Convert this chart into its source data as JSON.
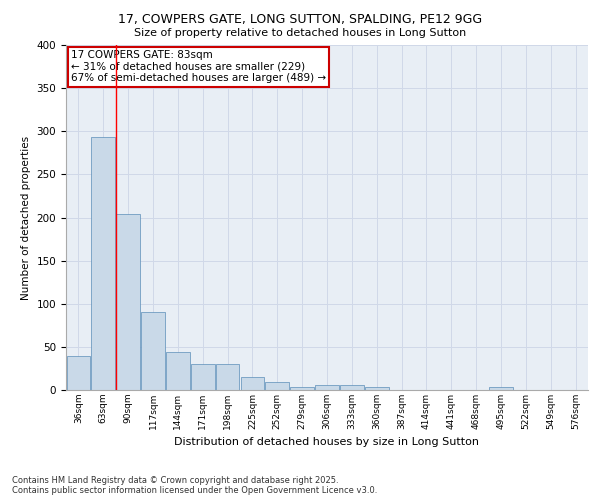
{
  "title1": "17, COWPERS GATE, LONG SUTTON, SPALDING, PE12 9GG",
  "title2": "Size of property relative to detached houses in Long Sutton",
  "xlabel": "Distribution of detached houses by size in Long Sutton",
  "ylabel": "Number of detached properties",
  "categories": [
    "36sqm",
    "63sqm",
    "90sqm",
    "117sqm",
    "144sqm",
    "171sqm",
    "198sqm",
    "225sqm",
    "252sqm",
    "279sqm",
    "306sqm",
    "333sqm",
    "360sqm",
    "387sqm",
    "414sqm",
    "441sqm",
    "468sqm",
    "495sqm",
    "522sqm",
    "549sqm",
    "576sqm"
  ],
  "values": [
    40,
    293,
    204,
    90,
    44,
    30,
    30,
    15,
    9,
    4,
    6,
    6,
    4,
    0,
    0,
    0,
    0,
    4,
    0,
    0,
    0
  ],
  "bar_color": "#c9d9e8",
  "bar_edge_color": "#5b8db8",
  "red_line_x": 1.5,
  "annotation_text": "17 COWPERS GATE: 83sqm\n← 31% of detached houses are smaller (229)\n67% of semi-detached houses are larger (489) →",
  "annotation_box_color": "#ffffff",
  "annotation_box_edge": "#cc0000",
  "grid_color": "#d0d8e8",
  "background_color": "#e8eef5",
  "ylim": [
    0,
    400
  ],
  "yticks": [
    0,
    50,
    100,
    150,
    200,
    250,
    300,
    350,
    400
  ],
  "footer": "Contains HM Land Registry data © Crown copyright and database right 2025.\nContains public sector information licensed under the Open Government Licence v3.0."
}
